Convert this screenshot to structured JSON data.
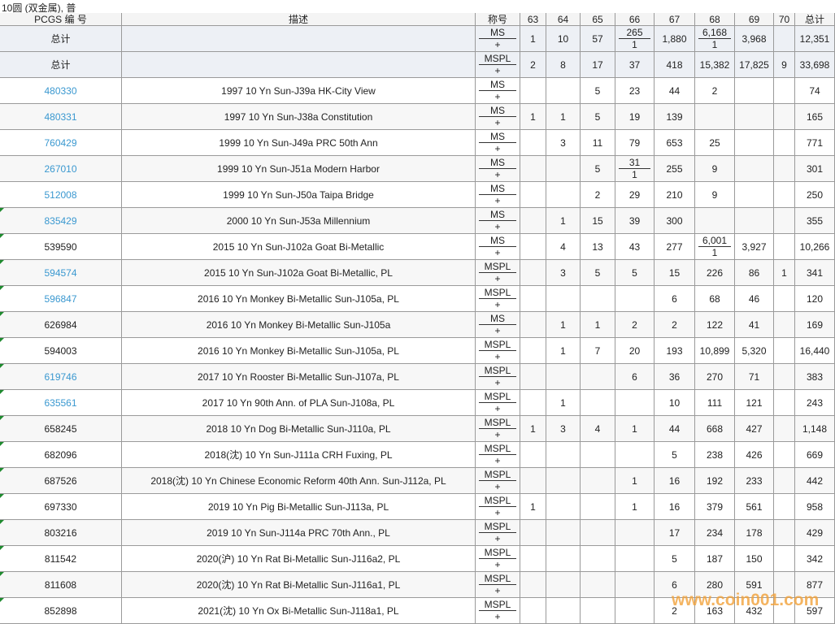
{
  "title": "10圆 (双金属), 普",
  "header": {
    "id": "PCGS 编 号",
    "desc": "描述",
    "des": "称号",
    "grades": [
      63,
      64,
      65,
      66,
      67,
      68,
      69,
      70
    ],
    "total": "总计"
  },
  "rows": [
    {
      "id": "总计",
      "desc": null,
      "des": "MS",
      "plus": "+",
      "grades": [
        "1",
        "10",
        "57",
        {
          "top": "265",
          "bottom": "1"
        },
        "1,880",
        {
          "top": "6,168",
          "bottom": "1"
        },
        "3,968",
        null
      ],
      "total": "12,351",
      "link": false,
      "summary": true
    },
    {
      "id": "总计",
      "desc": null,
      "des": "MSPL",
      "plus": "+",
      "grades": [
        "2",
        "8",
        "17",
        "37",
        "418",
        "15,382",
        "17,825",
        "9"
      ],
      "total": "33,698",
      "link": false,
      "summary": true
    },
    {
      "id": "480330",
      "desc": "1997 10 Yn Sun-J39a HK-City View",
      "des": "MS",
      "plus": "+",
      "grades": [
        null,
        null,
        "5",
        "23",
        "44",
        "2",
        null,
        null
      ],
      "total": "74",
      "link": true
    },
    {
      "id": "480331",
      "desc": "1997 10 Yn Sun-J38a Constitution",
      "des": "MS",
      "plus": "+",
      "grades": [
        "1",
        "1",
        "5",
        "19",
        "139",
        null,
        null,
        null
      ],
      "total": "165",
      "link": true
    },
    {
      "id": "760429",
      "desc": "1999 10 Yn Sun-J49a PRC 50th Ann",
      "des": "MS",
      "plus": "+",
      "grades": [
        null,
        "3",
        "11",
        "79",
        "653",
        "25",
        null,
        null
      ],
      "total": "771",
      "link": true
    },
    {
      "id": "267010",
      "desc": "1999 10 Yn Sun-J51a Modern Harbor",
      "des": "MS",
      "plus": "+",
      "grades": [
        null,
        null,
        "5",
        {
          "top": "31",
          "bottom": "1"
        },
        "255",
        "9",
        null,
        null
      ],
      "total": "301",
      "link": true
    },
    {
      "id": "512008",
      "desc": "1999 10 Yn Sun-J50a Taipa Bridge",
      "des": "MS",
      "plus": "+",
      "grades": [
        null,
        null,
        "2",
        "29",
        "210",
        "9",
        null,
        null
      ],
      "total": "250",
      "link": true
    },
    {
      "id": "835429",
      "desc": "2000 10 Yn Sun-J53a Millennium",
      "des": "MS",
      "plus": "+",
      "grades": [
        null,
        "1",
        "15",
        "39",
        "300",
        null,
        null,
        null
      ],
      "total": "355",
      "link": true
    },
    {
      "id": "539590",
      "desc": "2015 10 Yn Sun-J102a Goat Bi-Metallic",
      "des": "MS",
      "plus": "+",
      "grades": [
        null,
        "4",
        "13",
        "43",
        "277",
        {
          "top": "6,001",
          "bottom": "1"
        },
        "3,927",
        null
      ],
      "total": "10,266",
      "link": false
    },
    {
      "id": "594574",
      "desc": "2015 10 Yn Sun-J102a Goat Bi-Metallic, PL",
      "des": "MSPL",
      "plus": "+",
      "grades": [
        null,
        "3",
        "5",
        "5",
        "15",
        "226",
        "86",
        "1"
      ],
      "total": "341",
      "link": true
    },
    {
      "id": "596847",
      "desc": "2016 10 Yn Monkey Bi-Metallic Sun-J105a, PL",
      "des": "MSPL",
      "plus": "+",
      "grades": [
        null,
        null,
        null,
        null,
        "6",
        "68",
        "46",
        null
      ],
      "total": "120",
      "link": true
    },
    {
      "id": "626984",
      "desc": "2016 10 Yn Monkey Bi-Metallic Sun-J105a",
      "des": "MS",
      "plus": "+",
      "grades": [
        null,
        "1",
        "1",
        "2",
        "2",
        "122",
        "41",
        null
      ],
      "total": "169",
      "link": false
    },
    {
      "id": "594003",
      "desc": "2016 10 Yn Monkey Bi-Metallic Sun-J105a, PL",
      "des": "MSPL",
      "plus": "+",
      "grades": [
        null,
        "1",
        "7",
        "20",
        "193",
        "10,899",
        "5,320",
        null
      ],
      "total": "16,440",
      "link": false
    },
    {
      "id": "619746",
      "desc": "2017 10 Yn Rooster Bi-Metallic Sun-J107a, PL",
      "des": "MSPL",
      "plus": "+",
      "grades": [
        null,
        null,
        null,
        "6",
        "36",
        "270",
        "71",
        null
      ],
      "total": "383",
      "link": true
    },
    {
      "id": "635561",
      "desc": "2017 10 Yn 90th Ann. of PLA Sun-J108a, PL",
      "des": "MSPL",
      "plus": "+",
      "grades": [
        null,
        "1",
        null,
        null,
        "10",
        "111",
        "121",
        null
      ],
      "total": "243",
      "link": true
    },
    {
      "id": "658245",
      "desc": "2018 10 Yn Dog Bi-Metallic Sun-J110a, PL",
      "des": "MSPL",
      "plus": "+",
      "grades": [
        "1",
        "3",
        "4",
        "1",
        "44",
        "668",
        "427",
        null
      ],
      "total": "1,148",
      "link": false
    },
    {
      "id": "682096",
      "desc": "2018(沈) 10 Yn Sun-J111a CRH Fuxing, PL",
      "des": "MSPL",
      "plus": "+",
      "grades": [
        null,
        null,
        null,
        null,
        "5",
        "238",
        "426",
        null
      ],
      "total": "669",
      "link": false
    },
    {
      "id": "687526",
      "desc": "2018(沈) 10 Yn Chinese Economic Reform 40th Ann. Sun-J112a, PL",
      "des": "MSPL",
      "plus": "+",
      "grades": [
        null,
        null,
        null,
        "1",
        "16",
        "192",
        "233",
        null
      ],
      "total": "442",
      "link": false
    },
    {
      "id": "697330",
      "desc": "2019 10 Yn Pig Bi-Metallic Sun-J113a, PL",
      "des": "MSPL",
      "plus": "+",
      "grades": [
        "1",
        null,
        null,
        "1",
        "16",
        "379",
        "561",
        null
      ],
      "total": "958",
      "link": false
    },
    {
      "id": "803216",
      "desc": "2019 10 Yn Sun-J114a PRC 70th Ann., PL",
      "des": "MSPL",
      "plus": "+",
      "grades": [
        null,
        null,
        null,
        null,
        "17",
        "234",
        "178",
        null
      ],
      "total": "429",
      "link": false
    },
    {
      "id": "811542",
      "desc": "2020(沪) 10 Yn Rat Bi-Metallic Sun-J116a2, PL",
      "des": "MSPL",
      "plus": "+",
      "grades": [
        null,
        null,
        null,
        null,
        "5",
        "187",
        "150",
        null
      ],
      "total": "342",
      "link": false
    },
    {
      "id": "811608",
      "desc": "2020(沈) 10 Yn Rat Bi-Metallic Sun-J116a1, PL",
      "des": "MSPL",
      "plus": "+",
      "grades": [
        null,
        null,
        null,
        null,
        "6",
        "280",
        "591",
        null
      ],
      "total": "877",
      "link": false
    },
    {
      "id": "852898",
      "desc": "2021(沈) 10 Yn Ox Bi-Metallic Sun-J118a1, PL",
      "des": "MSPL",
      "plus": "+",
      "grades": [
        null,
        null,
        null,
        null,
        "2",
        "163",
        "432",
        null
      ],
      "total": "597",
      "link": false
    }
  ],
  "watermark": "www.coin001.com"
}
